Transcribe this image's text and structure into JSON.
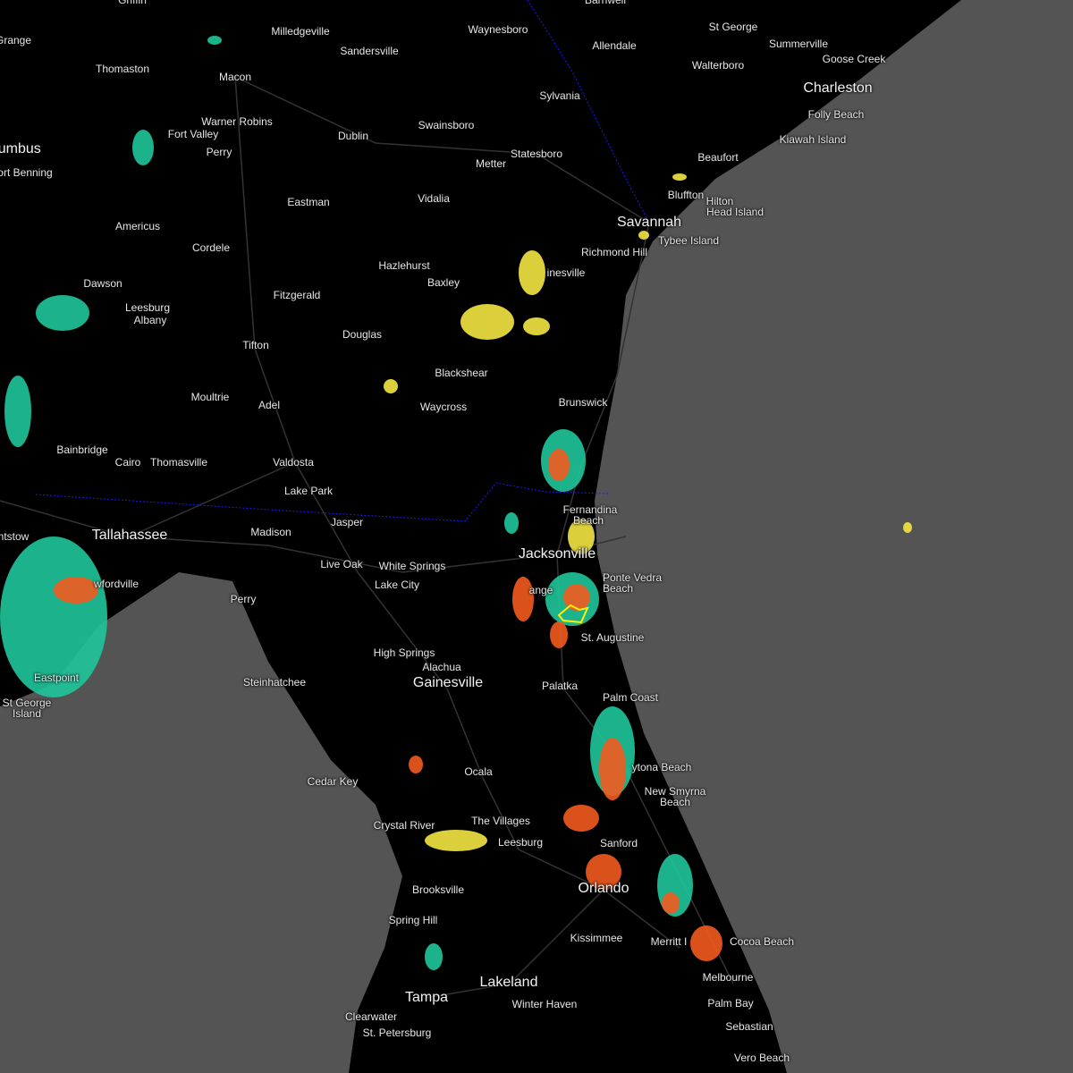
{
  "map": {
    "colors": {
      "land": "#000000",
      "water": "#545454",
      "roads": "#3a3a3a",
      "state_border": "#1a1aff",
      "warning_polygon": "#ffee00",
      "radar_light": "#1fc79b",
      "radar_mid": "#f4e542",
      "radar_heavy": "#f25a1e",
      "radar_extreme": "#d40000"
    },
    "cities": [
      {
        "name": "Barnwell",
        "big": false
      },
      {
        "name": "Griffin",
        "big": false
      },
      {
        "name": "Milledgeville",
        "big": false
      },
      {
        "name": "Waynesboro",
        "big": false
      },
      {
        "name": "Allendale",
        "big": false
      },
      {
        "name": "St George",
        "big": false
      },
      {
        "name": "Summerville",
        "big": false
      },
      {
        "name": "Goose Creek",
        "big": false
      },
      {
        "name": "Grange",
        "big": false
      },
      {
        "name": "Thomaston",
        "big": false
      },
      {
        "name": "Macon",
        "big": false
      },
      {
        "name": "Sandersville",
        "big": false
      },
      {
        "name": "Walterboro",
        "big": false
      },
      {
        "name": "Charleston",
        "big": true
      },
      {
        "name": "Folly Beach",
        "big": false
      },
      {
        "name": "Kiawah Island",
        "big": false
      },
      {
        "name": "Sylvania",
        "big": false
      },
      {
        "name": "Warner Robins",
        "big": false
      },
      {
        "name": "Fort Valley",
        "big": false
      },
      {
        "name": "Dublin",
        "big": false
      },
      {
        "name": "Swainsboro",
        "big": false
      },
      {
        "name": "Statesboro",
        "big": false
      },
      {
        "name": "Metter",
        "big": false
      },
      {
        "name": "Perry",
        "big": false
      },
      {
        "name": "lumbus",
        "big": true
      },
      {
        "name": "ort Benning",
        "big": false
      },
      {
        "name": "Beaufort",
        "big": false
      },
      {
        "name": "Bluffton",
        "big": false
      },
      {
        "name": "Hilton",
        "big": false
      },
      {
        "name": "Head Island",
        "big": false
      },
      {
        "name": "Savannah",
        "big": true
      },
      {
        "name": "Tybee Island",
        "big": false
      },
      {
        "name": "Richmond Hill",
        "big": false
      },
      {
        "name": "Eastman",
        "big": false
      },
      {
        "name": "Vidalia",
        "big": false
      },
      {
        "name": "Americus",
        "big": false
      },
      {
        "name": "Cordele",
        "big": false
      },
      {
        "name": "Hazlehurst",
        "big": false
      },
      {
        "name": "Baxley",
        "big": false
      },
      {
        "name": "inesville",
        "big": false
      },
      {
        "name": "Dawson",
        "big": false
      },
      {
        "name": "Leesburg",
        "big": false
      },
      {
        "name": "Albany",
        "big": false
      },
      {
        "name": "Fitzgerald",
        "big": false
      },
      {
        "name": "Douglas",
        "big": false
      },
      {
        "name": "Tifton",
        "big": false
      },
      {
        "name": "Blackshear",
        "big": false
      },
      {
        "name": "Moultrie",
        "big": false
      },
      {
        "name": "Adel",
        "big": false
      },
      {
        "name": "Waycross",
        "big": false
      },
      {
        "name": "Brunswick",
        "big": false
      },
      {
        "name": "Bainbridge",
        "big": false
      },
      {
        "name": "Cairo",
        "big": false
      },
      {
        "name": "Thomasville",
        "big": false
      },
      {
        "name": "Valdosta",
        "big": false
      },
      {
        "name": "Lake Park",
        "big": false
      },
      {
        "name": "Jasper",
        "big": false
      },
      {
        "name": "Fernandina",
        "big": false
      },
      {
        "name": "Beach",
        "big": false
      },
      {
        "name": "Tallahassee",
        "big": true
      },
      {
        "name": "Madison",
        "big": false
      },
      {
        "name": "ntstow",
        "big": false
      },
      {
        "name": "Jacksonville",
        "big": true
      },
      {
        "name": "Live Oak",
        "big": false
      },
      {
        "name": "White Springs",
        "big": false
      },
      {
        "name": "Ponte Vedra",
        "big": false
      },
      {
        "name": "Beach",
        "big": false
      },
      {
        "name": "Lake City",
        "big": false
      },
      {
        "name": "wfordville",
        "big": false
      },
      {
        "name": "Perry",
        "big": false
      },
      {
        "name": "St. Augustine",
        "big": false
      },
      {
        "name": "High Springs",
        "big": false
      },
      {
        "name": "Alachua",
        "big": false
      },
      {
        "name": "Gainesville",
        "big": true
      },
      {
        "name": "Steinhatchee",
        "big": false
      },
      {
        "name": "Eastpoint",
        "big": false
      },
      {
        "name": "St George",
        "big": false
      },
      {
        "name": "Island",
        "big": false
      },
      {
        "name": "Palatka",
        "big": false
      },
      {
        "name": "Palm Coast",
        "big": false
      },
      {
        "name": "ytona Beach",
        "big": false
      },
      {
        "name": "New Smyrna",
        "big": false
      },
      {
        "name": "Beach",
        "big": false
      },
      {
        "name": "Ocala",
        "big": false
      },
      {
        "name": "Cedar Key",
        "big": false
      },
      {
        "name": "Crystal River",
        "big": false
      },
      {
        "name": "The Villages",
        "big": false
      },
      {
        "name": "Leesburg",
        "big": false
      },
      {
        "name": "Sanford",
        "big": false
      },
      {
        "name": "Brooksville",
        "big": false
      },
      {
        "name": "Orlando",
        "big": true
      },
      {
        "name": "Spring Hill",
        "big": false
      },
      {
        "name": "Kissimmee",
        "big": false
      },
      {
        "name": "Merritt I",
        "big": false
      },
      {
        "name": "Cocoa Beach",
        "big": false
      },
      {
        "name": "Melbourne",
        "big": false
      },
      {
        "name": "Lakeland",
        "big": true
      },
      {
        "name": "Winter Haven",
        "big": false
      },
      {
        "name": "Palm Bay",
        "big": false
      },
      {
        "name": "Tampa",
        "big": true
      },
      {
        "name": "Clearwater",
        "big": false
      },
      {
        "name": "St. Petersburg",
        "big": false
      },
      {
        "name": "Sebastian",
        "big": false
      },
      {
        "name": "Vero Beach",
        "big": false
      },
      {
        "name": "ange",
        "big": false
      }
    ]
  }
}
